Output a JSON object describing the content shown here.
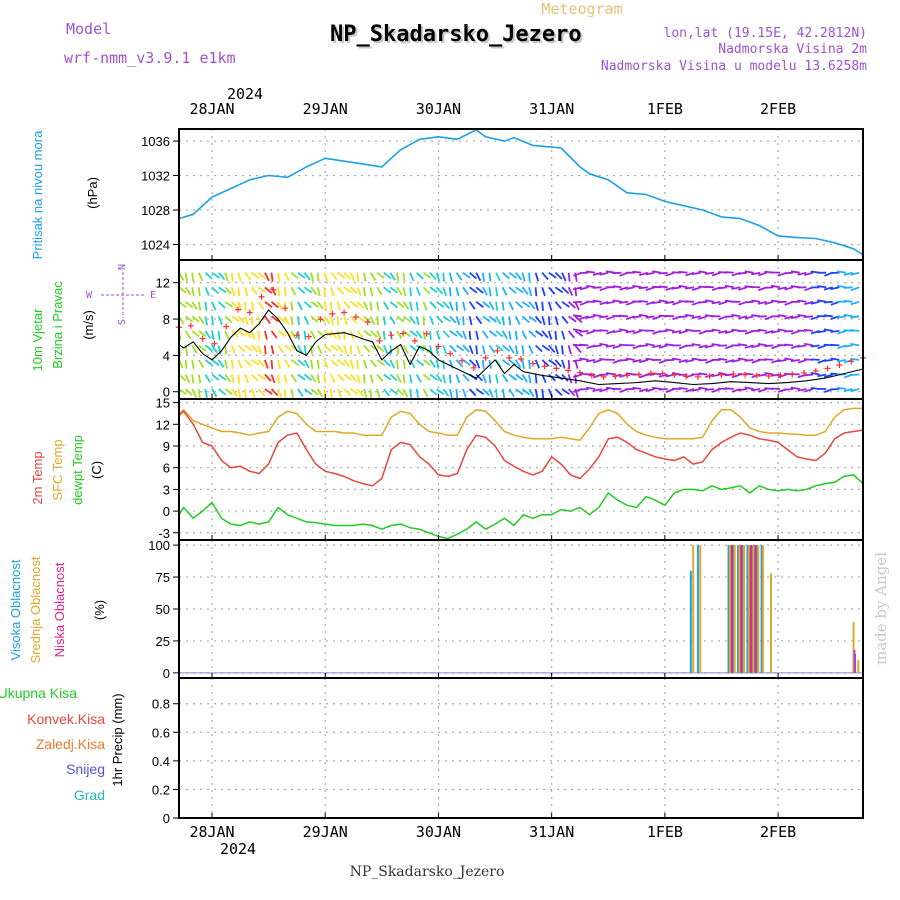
{
  "header": {
    "model_label": "Model",
    "model_name": "wrf-nmm_v3.9.1  e1km",
    "meteogram_label": "Meteogram",
    "station_title": "NP_Skadarsko_Jezero",
    "lonlat": "lon,lat (19.15E, 42.2812N)",
    "altitude": "Nadmorska Visina 2m",
    "model_altitude": "Nadmorska Visina u modelu 13.6258m"
  },
  "footer": {
    "station": "NP_Skadarsko_Jezero",
    "watermark": "made by Angel"
  },
  "colors": {
    "pressure": "#1ea0e6",
    "wind_label": "#22cc22",
    "t2m": "#e8463c",
    "tsfc": "#e0a82a",
    "dewpoint": "#22cc22",
    "high_cloud": "#1ea0e6",
    "mid_cloud": "#e0a82a",
    "low_cloud": "#e0218a",
    "total_precip": "#22cc22",
    "convective": "#e8463c",
    "frozen": "#f07a30",
    "snow": "#5050e0",
    "graupel": "#22bbaa",
    "compass": "#a050d0",
    "frame": "#000000"
  },
  "time_axis": {
    "year_label": "2024",
    "dates": [
      "28JAN",
      "29JAN",
      "30JAN",
      "31JAN",
      "1FEB",
      "2FEB"
    ],
    "start_hour_offset": -7,
    "end_hour_offset": 138
  },
  "compass": {
    "n": "N",
    "w": "W",
    "e": "E",
    "s": "S"
  },
  "chart_data": [
    {
      "type": "line",
      "panel": "pressure",
      "ylabel_main": "Pritisak na nivou mora",
      "ylabel_unit": "(hPa)",
      "yticks": [
        1024,
        1028,
        1032,
        1036
      ],
      "ylim": [
        1022.2,
        1037.4
      ],
      "x_hours": [
        -7,
        -4,
        0,
        4,
        8,
        12,
        16,
        20,
        24,
        30,
        36,
        40,
        44,
        48,
        52,
        56,
        58,
        62,
        64,
        68,
        72,
        74,
        78,
        80,
        84,
        88,
        92,
        96,
        100,
        104,
        108,
        112,
        116,
        120,
        124,
        128,
        132,
        136,
        138
      ],
      "series": [
        {
          "values": [
            1027.0,
            1027.5,
            1029.5,
            1030.5,
            1031.5,
            1032.0,
            1031.8,
            1033.0,
            1034.0,
            1033.5,
            1033.0,
            1035.0,
            1036.2,
            1036.5,
            1036.2,
            1037.3,
            1036.5,
            1036.0,
            1036.4,
            1035.5,
            1035.3,
            1035.2,
            1033.0,
            1032.2,
            1031.5,
            1030.0,
            1029.8,
            1029.0,
            1028.5,
            1028.0,
            1027.2,
            1027.0,
            1026.2,
            1025.0,
            1024.8,
            1024.7,
            1024.2,
            1023.5,
            1022.8
          ]
        }
      ]
    },
    {
      "type": "line",
      "panel": "wind",
      "ylabel_main": "10m Vjetar",
      "ylabel_sub": "Brzina i Pravac",
      "ylabel_unit": "(m/s)",
      "yticks": [
        0,
        4,
        8,
        12
      ],
      "ylim": [
        -0.8,
        14.5
      ],
      "x_hours": [
        -7,
        -6,
        -4,
        -2,
        0,
        2,
        4,
        6,
        8,
        10,
        12,
        14,
        16,
        18,
        20,
        22,
        24,
        26,
        28,
        30,
        32,
        34,
        36,
        38,
        40,
        42,
        44,
        46,
        48,
        50,
        52,
        54,
        56,
        58,
        60,
        62,
        64,
        66,
        70,
        74,
        78,
        82,
        86,
        90,
        94,
        98,
        102,
        106,
        110,
        114,
        118,
        122,
        126,
        130,
        134,
        138
      ],
      "series": [
        {
          "name": "speed",
          "values": [
            5.2,
            4.8,
            5.5,
            4.2,
            3.5,
            4.5,
            6.0,
            7.0,
            6.5,
            7.5,
            9.0,
            8.0,
            6.5,
            4.5,
            4.0,
            5.5,
            6.3,
            6.4,
            6.5,
            6.2,
            5.8,
            5.5,
            3.5,
            4.5,
            5.2,
            3.0,
            5.0,
            4.5,
            3.5,
            3.0,
            2.5,
            2.0,
            1.5,
            2.5,
            3.5,
            2.0,
            3.0,
            2.2,
            1.8,
            1.5,
            1.2,
            0.8,
            0.9,
            1.0,
            1.2,
            1.0,
            0.8,
            0.9,
            1.1,
            1.0,
            0.9,
            1.0,
            1.2,
            1.5,
            2.0,
            2.5
          ]
        }
      ]
    },
    {
      "type": "line",
      "panel": "temperature",
      "ylabel_main": "2m Temp",
      "ylabel_sub": "SFC Temp",
      "ylabel_sub2": "dewpt Temp",
      "ylabel_unit": "(C)",
      "yticks": [
        -3,
        0,
        3,
        6,
        9,
        12,
        15
      ],
      "ylim": [
        -4.0,
        15.5
      ],
      "x_hours": [
        -7,
        -6,
        -4,
        -2,
        0,
        2,
        4,
        6,
        8,
        10,
        12,
        14,
        16,
        18,
        20,
        22,
        24,
        26,
        28,
        30,
        32,
        34,
        36,
        38,
        40,
        42,
        44,
        46,
        48,
        50,
        52,
        54,
        56,
        58,
        60,
        62,
        64,
        66,
        68,
        70,
        72,
        74,
        76,
        78,
        80,
        82,
        84,
        86,
        88,
        90,
        92,
        94,
        96,
        98,
        100,
        102,
        104,
        106,
        108,
        110,
        112,
        114,
        116,
        118,
        120,
        122,
        124,
        126,
        128,
        130,
        132,
        134,
        136,
        138
      ],
      "series": [
        {
          "name": "2m Temp",
          "values": [
            13.2,
            13.8,
            12.0,
            9.5,
            9.0,
            7.0,
            6.0,
            6.2,
            5.5,
            5.2,
            6.5,
            9.5,
            10.5,
            10.8,
            8.5,
            6.5,
            5.5,
            5.2,
            4.8,
            4.2,
            3.8,
            3.5,
            4.5,
            8.5,
            9.5,
            9.2,
            7.5,
            6.5,
            5.0,
            4.8,
            5.2,
            8.5,
            10.5,
            10.2,
            9.0,
            7.0,
            6.2,
            5.5,
            5.0,
            5.5,
            7.5,
            6.5,
            5.0,
            4.5,
            5.8,
            7.5,
            10.0,
            10.2,
            9.5,
            8.5,
            8.0,
            7.5,
            7.2,
            7.0,
            7.5,
            6.5,
            6.8,
            8.5,
            9.5,
            10.2,
            10.8,
            10.5,
            10.0,
            9.8,
            9.5,
            8.5,
            7.5,
            7.2,
            7.0,
            8.0,
            10.0,
            10.8,
            11.0,
            11.2
          ]
        },
        {
          "name": "SFC Temp",
          "values": [
            13.5,
            14.0,
            12.5,
            12.0,
            11.5,
            11.0,
            11.0,
            10.8,
            10.5,
            10.8,
            11.0,
            13.0,
            13.8,
            13.5,
            12.0,
            11.0,
            11.0,
            11.0,
            10.8,
            10.8,
            10.5,
            10.5,
            10.5,
            13.0,
            13.8,
            13.5,
            12.0,
            11.0,
            10.8,
            10.5,
            10.5,
            13.0,
            14.0,
            13.8,
            12.5,
            11.0,
            10.5,
            10.2,
            10.0,
            10.0,
            10.0,
            10.2,
            10.0,
            9.8,
            11.5,
            13.5,
            14.0,
            13.5,
            12.0,
            11.0,
            10.5,
            10.2,
            10.0,
            10.0,
            10.0,
            10.0,
            10.2,
            12.5,
            14.0,
            14.0,
            13.0,
            11.5,
            11.0,
            10.8,
            10.8,
            10.7,
            10.6,
            10.5,
            10.5,
            11.0,
            13.0,
            14.0,
            14.2,
            14.2
          ]
        },
        {
          "name": "dewpt Temp",
          "values": [
            -0.5,
            0.5,
            -1.0,
            0.0,
            1.2,
            -1.0,
            -1.8,
            -2.0,
            -1.5,
            -1.8,
            -1.5,
            0.5,
            -0.5,
            -1.0,
            -1.5,
            -1.6,
            -1.8,
            -2.0,
            -2.0,
            -2.0,
            -1.8,
            -2.0,
            -2.5,
            -2.0,
            -1.8,
            -2.3,
            -2.5,
            -3.0,
            -3.5,
            -3.8,
            -3.2,
            -2.5,
            -1.5,
            -2.5,
            -1.8,
            -1.0,
            -2.0,
            -0.5,
            -1.0,
            -0.5,
            -0.5,
            0.2,
            0.0,
            0.5,
            -0.5,
            0.5,
            2.5,
            1.5,
            0.8,
            0.5,
            2.0,
            1.5,
            0.8,
            2.5,
            3.0,
            3.0,
            2.8,
            3.5,
            3.0,
            3.2,
            3.5,
            2.5,
            3.5,
            3.0,
            2.8,
            3.0,
            2.8,
            3.0,
            3.5,
            3.8,
            4.0,
            4.8,
            5.0,
            3.8
          ]
        }
      ]
    },
    {
      "type": "bar",
      "panel": "cloud",
      "ylabel_main": "Visoka Oblacnost",
      "ylabel_sub": "Srednja Oblacnost",
      "ylabel_sub2": "Niska Oblacnost",
      "ylabel_unit": "(%)",
      "yticks": [
        0,
        25,
        50,
        75,
        100
      ],
      "ylim": [
        -4,
        104
      ],
      "series": [
        {
          "name": "Visoka Oblacnost",
          "x_hours": [
            101.5,
            103.0,
            109.5,
            110.5,
            111.5,
            112.5,
            113.5,
            114.5,
            115.5,
            116.5
          ],
          "values": [
            80,
            100,
            100,
            100,
            100,
            100,
            100,
            100,
            100,
            100
          ]
        },
        {
          "name": "Srednja Oblacnost",
          "x_hours": [
            102.0,
            103.5,
            109.8,
            110.8,
            111.8,
            112.8,
            113.8,
            114.8,
            115.8,
            116.8,
            118.5,
            136.0,
            137.0
          ],
          "values": [
            100,
            100,
            100,
            100,
            100,
            100,
            100,
            100,
            100,
            100,
            78,
            40,
            10
          ]
        },
        {
          "name": "Niska Oblacnost",
          "x_hours": [
            110.2,
            112.2,
            114.2,
            115.2,
            136.3
          ],
          "values": [
            100,
            100,
            100,
            100,
            15
          ]
        }
      ]
    },
    {
      "type": "bar",
      "panel": "precip",
      "ylabel_main": "1hr Precip (mm)",
      "legend": [
        "Ukupna Kisa",
        "Konvek.Kisa",
        "Zaledj.Kisa",
        "Snijeg",
        "Grad"
      ],
      "yticks": [
        0,
        0.2,
        0.4,
        0.6,
        0.8
      ],
      "ylim": [
        0,
        0.98
      ],
      "series": []
    }
  ]
}
